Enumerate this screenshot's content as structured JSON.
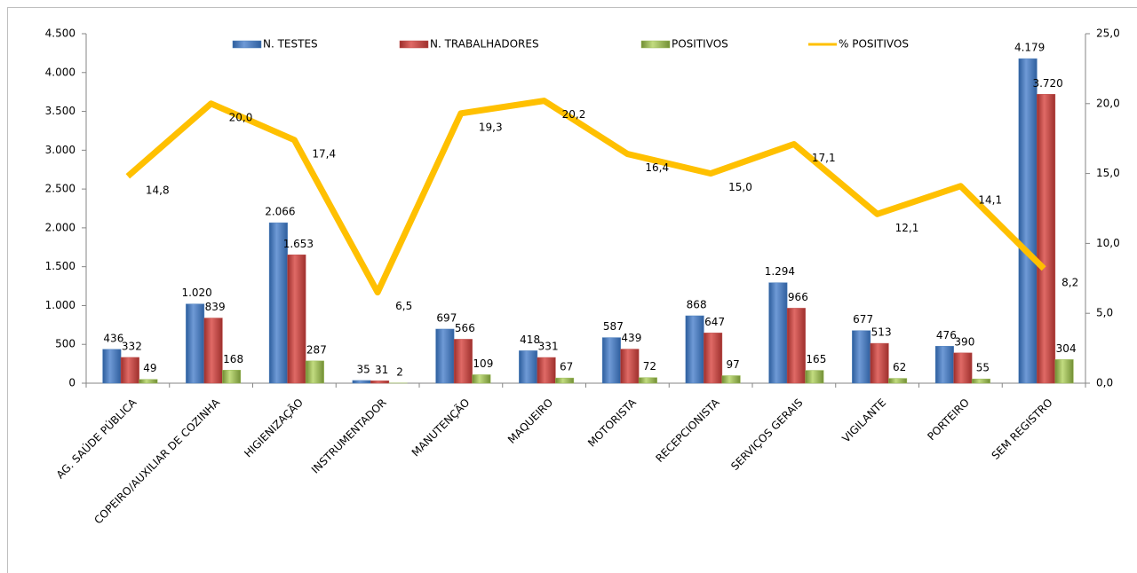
{
  "chart_data": {
    "type": "bar",
    "categories": [
      "AG. SAÚDE PÚBLICA",
      "COPEIRO/AUXILIAR DE COZINHA",
      "HIGIENIZAÇÃO",
      "INSTRUMENTADOR",
      "MANUTENÇÃO",
      "MAQUEIRO",
      "MOTORISTA",
      "RECEPCIONISTA",
      "SERVIÇOS GERAIS",
      "VIGILANTE",
      "PORTEIRO",
      "SEM REGISTRO"
    ],
    "series": [
      {
        "name": "N. TESTES",
        "color": "#4f81bd",
        "type": "bar",
        "values": [
          436,
          1020,
          2066,
          35,
          697,
          418,
          587,
          868,
          1294,
          677,
          476,
          4179
        ],
        "value_labels": [
          "436",
          "1.020",
          "2.066",
          "35",
          "697",
          "418",
          "587",
          "868",
          "1.294",
          "677",
          "476",
          "4.179"
        ]
      },
      {
        "name": "N. TRABALHADORES",
        "color": "#c0504d",
        "type": "bar",
        "values": [
          332,
          839,
          1653,
          31,
          566,
          331,
          439,
          647,
          966,
          513,
          390,
          3720
        ],
        "value_labels": [
          "332",
          "839",
          "1.653",
          "31",
          "566",
          "331",
          "439",
          "647",
          "966",
          "513",
          "390",
          "3.720"
        ]
      },
      {
        "name": "POSITIVOS",
        "color": "#9bbb59",
        "type": "bar",
        "values": [
          49,
          168,
          287,
          2,
          109,
          67,
          72,
          97,
          165,
          62,
          55,
          304
        ]
      },
      {
        "name": "%  POSITIVOS",
        "color": "#ffc000",
        "type": "line",
        "axis": "y2",
        "values": [
          14.8,
          20.0,
          17.4,
          6.5,
          19.3,
          20.2,
          16.4,
          15.0,
          17.1,
          12.1,
          14.1,
          8.2
        ],
        "value_labels": [
          "14,8",
          "20,0",
          "17,4",
          "6,5",
          "19,3",
          "20,2",
          "16,4",
          "15,0",
          "17,1",
          "12,1",
          "14,1",
          "8,2"
        ]
      }
    ],
    "ylim": [
      0,
      4500
    ],
    "yticks": [
      0,
      {
        "value": 500,
        "label": "500"
      },
      {
        "value": 1000,
        "label": "1.000"
      },
      {
        "value": 1500,
        "label": "1.500"
      },
      {
        "value": 2000,
        "label": "2.000"
      },
      {
        "value": 2500,
        "label": "2.500"
      },
      {
        "value": 3000,
        "label": "3.000"
      },
      {
        "value": 3500,
        "label": "3.500"
      },
      {
        "value": 4000,
        "label": "4.000"
      },
      {
        "value": 4500,
        "label": "4.500"
      }
    ],
    "y2lim": [
      0,
      25
    ],
    "y2ticks": [
      {
        "value": 0,
        "label": "0,0"
      },
      {
        "value": 5,
        "label": "5,0"
      },
      {
        "value": 10,
        "label": "10,0"
      },
      {
        "value": 15,
        "label": "15,0"
      },
      {
        "value": 20,
        "label": "20,0"
      },
      {
        "value": 25,
        "label": "25,0"
      }
    ],
    "legend": "top"
  }
}
